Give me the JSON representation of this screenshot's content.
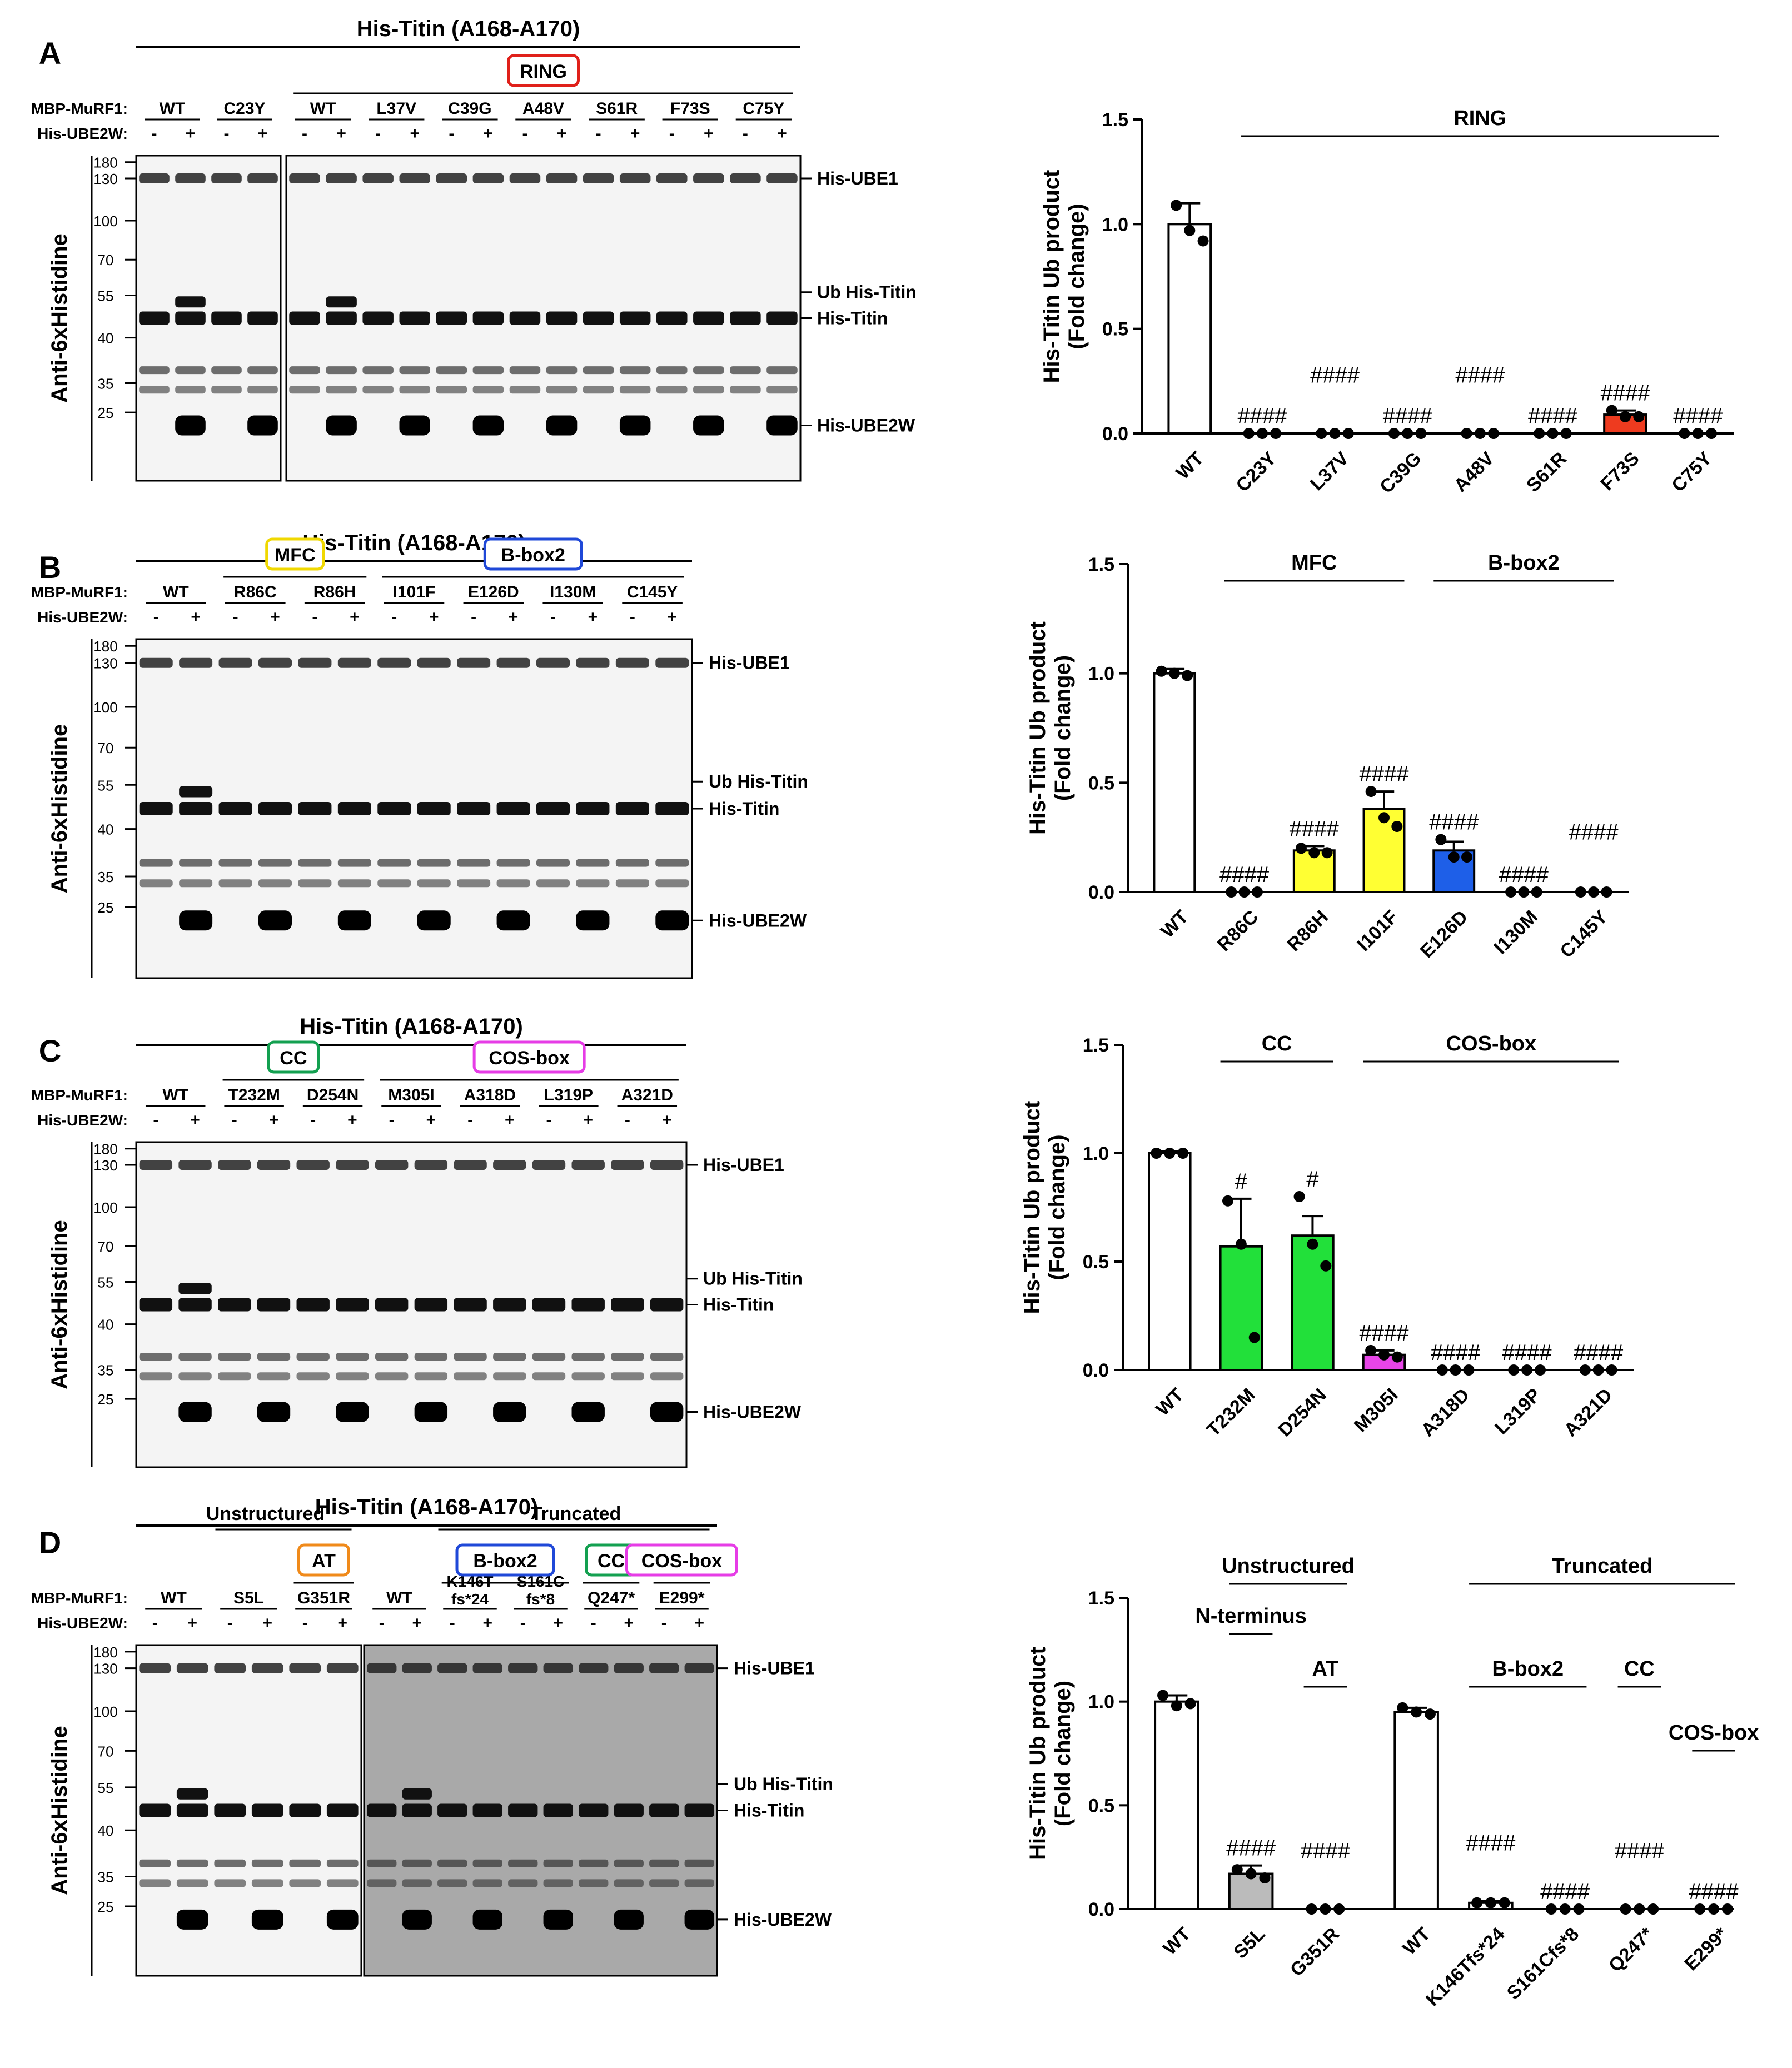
{
  "panels": [
    {
      "letter": "A",
      "blot": {
        "title": "His-Titin (A168-A170)",
        "domains": [
          {
            "label": "RING",
            "color": "#e0201a"
          }
        ],
        "row_label_mbp": "MBP-MuRF1:",
        "row_label_ube2w": "His-UBE2W:",
        "lanes_left": [
          "WT",
          "C23Y"
        ],
        "lanes_right": [
          "WT",
          "L37V",
          "C39G",
          "A48V",
          "S61R",
          "F73S",
          "C75Y"
        ],
        "ube2w_marks": [
          "-",
          "+"
        ],
        "mw_markers": [
          "180",
          "130",
          "100",
          "70",
          "55",
          "40",
          "35",
          "25"
        ],
        "y_axis_label": "Anti-6xHistidine",
        "band_labels": [
          "His-UBE1",
          "Ub His-Titin",
          "His-Titin",
          "His-UBE2W"
        ]
      },
      "chart_data": {
        "type": "bar",
        "ylabel": "His-Titin Ub product\n(Fold change)",
        "ylim": [
          0,
          1.5
        ],
        "yticks": [
          "0.0",
          "0.5",
          "1.0",
          "1.5"
        ],
        "categories": [
          "WT",
          "C23Y",
          "L37V",
          "C39G",
          "A48V",
          "S61R",
          "F73S",
          "C75Y"
        ],
        "values": [
          1.0,
          0.0,
          0.0,
          0.0,
          0.0,
          0.0,
          0.09,
          0.0
        ],
        "errors": [
          0.1,
          0,
          0,
          0,
          0,
          0,
          0.02,
          0
        ],
        "colors": [
          "#ffffff",
          "#ffffff",
          "#ffffff",
          "#ffffff",
          "#ffffff",
          "#ffffff",
          "#ee3b1f",
          "#ffffff"
        ],
        "points": [
          [
            1.09,
            0.97,
            0.92
          ],
          [
            0,
            0,
            0
          ],
          [
            0,
            0,
            0
          ],
          [
            0,
            0,
            0
          ],
          [
            0,
            0,
            0
          ],
          [
            0,
            0,
            0
          ],
          [
            0.11,
            0.08,
            0.08
          ],
          [
            0,
            0,
            0
          ]
        ],
        "significance": [
          "",
          "####",
          "####",
          "####",
          "####",
          "####",
          "####",
          "####"
        ],
        "brackets": [
          {
            "label": "RING",
            "from": 1,
            "to": 7
          }
        ]
      }
    },
    {
      "letter": "B",
      "blot": {
        "title": "His-Titin (A168-A170)",
        "domains": [
          {
            "label": "MFC",
            "color": "#f0d800"
          },
          {
            "label": "B-box2",
            "color": "#1f48d8"
          }
        ],
        "row_label_mbp": "MBP-MuRF1:",
        "row_label_ube2w": "His-UBE2W:",
        "lanes": [
          "WT",
          "R86C",
          "R86H",
          "I101F",
          "E126D",
          "I130M",
          "C145Y"
        ],
        "ube2w_marks": [
          "-",
          "+"
        ],
        "mw_markers": [
          "180",
          "130",
          "100",
          "70",
          "55",
          "40",
          "35",
          "25"
        ],
        "y_axis_label": "Anti-6xHistidine",
        "band_labels": [
          "His-UBE1",
          "Ub His-Titin",
          "His-Titin",
          "His-UBE2W"
        ]
      },
      "chart_data": {
        "type": "bar",
        "ylabel": "His-Titin Ub product\n(Fold change)",
        "ylim": [
          0,
          1.5
        ],
        "yticks": [
          "0.0",
          "0.5",
          "1.0",
          "1.5"
        ],
        "categories": [
          "WT",
          "R86C",
          "R86H",
          "I101F",
          "E126D",
          "I130M",
          "C145Y"
        ],
        "values": [
          1.0,
          0.0,
          0.19,
          0.38,
          0.19,
          0.0,
          0.0
        ],
        "errors": [
          0.02,
          0,
          0.02,
          0.08,
          0.04,
          0,
          0
        ],
        "colors": [
          "#ffffff",
          "#ffffff",
          "#ffff33",
          "#ffff33",
          "#1e5fe8",
          "#ffffff",
          "#ffffff"
        ],
        "points": [
          [
            1.01,
            1.0,
            0.99
          ],
          [
            0,
            0,
            0
          ],
          [
            0.2,
            0.18,
            0.18
          ],
          [
            0.46,
            0.34,
            0.3
          ],
          [
            0.24,
            0.16,
            0.16
          ],
          [
            0,
            0,
            0
          ],
          [
            0,
            0,
            0
          ]
        ],
        "significance": [
          "",
          "####",
          "####",
          "####",
          "####",
          "####",
          "####"
        ],
        "brackets": [
          {
            "label": "MFC",
            "from": 1,
            "to": 3
          },
          {
            "label": "B-box2",
            "from": 4,
            "to": 6
          }
        ]
      }
    },
    {
      "letter": "C",
      "blot": {
        "title": "His-Titin (A168-A170)",
        "domains": [
          {
            "label": "CC",
            "color": "#13a050"
          },
          {
            "label": "COS-box",
            "color": "#e63ce6"
          }
        ],
        "row_label_mbp": "MBP-MuRF1:",
        "row_label_ube2w": "His-UBE2W:",
        "lanes": [
          "WT",
          "T232M",
          "D254N",
          "M305I",
          "A318D",
          "L319P",
          "A321D"
        ],
        "ube2w_marks": [
          "-",
          "+"
        ],
        "mw_markers": [
          "180",
          "130",
          "100",
          "70",
          "55",
          "40",
          "35",
          "25"
        ],
        "y_axis_label": "Anti-6xHistidine",
        "band_labels": [
          "His-UBE1",
          "Ub His-Titin",
          "His-Titin",
          "His-UBE2W"
        ]
      },
      "chart_data": {
        "type": "bar",
        "ylabel": "His-Titin Ub product\n(Fold change)",
        "ylim": [
          0,
          1.5
        ],
        "yticks": [
          "0.0",
          "0.5",
          "1.0",
          "1.5"
        ],
        "categories": [
          "WT",
          "T232M",
          "D254N",
          "M305I",
          "A318D",
          "L319P",
          "A321D"
        ],
        "values": [
          1.0,
          0.57,
          0.62,
          0.07,
          0.0,
          0.0,
          0.0
        ],
        "errors": [
          0.01,
          0.22,
          0.09,
          0.02,
          0,
          0,
          0
        ],
        "colors": [
          "#ffffff",
          "#22e03a",
          "#22e03a",
          "#e845e8",
          "#ffffff",
          "#ffffff",
          "#ffffff"
        ],
        "points": [
          [
            1.0,
            1.0,
            1.0
          ],
          [
            0.78,
            0.58,
            0.15
          ],
          [
            0.8,
            0.58,
            0.48
          ],
          [
            0.09,
            0.07,
            0.06
          ],
          [
            0,
            0,
            0
          ],
          [
            0,
            0,
            0
          ],
          [
            0,
            0,
            0
          ]
        ],
        "significance": [
          "",
          "#",
          "#",
          "####",
          "####",
          "####",
          "####"
        ],
        "brackets": [
          {
            "label": "CC",
            "from": 1,
            "to": 2
          },
          {
            "label": "COS-box",
            "from": 3,
            "to": 6
          }
        ]
      }
    },
    {
      "letter": "D",
      "blot": {
        "title": "His-Titin (A168-A170)",
        "group_labels": [
          "Unstructured",
          "Truncated"
        ],
        "domains": [
          {
            "label": "AT",
            "color": "#f08a1a"
          },
          {
            "label": "B-box2",
            "color": "#1f48d8"
          },
          {
            "label": "CC",
            "color": "#13a050"
          },
          {
            "label": "COS-box",
            "color": "#e63ce6"
          }
        ],
        "row_label_mbp": "MBP-MuRF1:",
        "row_label_ube2w": "His-UBE2W:",
        "lanes_left": [
          "WT",
          "S5L",
          "G351R"
        ],
        "lanes_right": [
          "WT",
          "K146T\nfs*24",
          "S161C\nfs*8",
          "Q247*",
          "E299*"
        ],
        "ube2w_marks": [
          "-",
          "+"
        ],
        "mw_markers": [
          "180",
          "130",
          "100",
          "70",
          "55",
          "40",
          "35",
          "25"
        ],
        "y_axis_label": "Anti-6xHistidine",
        "band_labels": [
          "His-UBE1",
          "Ub His-Titin",
          "His-Titin",
          "His-UBE2W"
        ]
      },
      "chart_data": {
        "type": "bar",
        "ylabel": "His-Titin Ub product\n(Fold change)",
        "ylim": [
          0,
          1.5
        ],
        "yticks": [
          "0.0",
          "0.5",
          "1.0",
          "1.5"
        ],
        "categories": [
          "WT",
          "S5L",
          "G351R",
          "WT",
          "K146Tfs*24",
          "S161Cfs*8",
          "Q247*",
          "E299*"
        ],
        "values": [
          1.0,
          0.17,
          0.0,
          0.95,
          0.03,
          0.0,
          0.0,
          0.0
        ],
        "errors": [
          0.03,
          0.04,
          0,
          0.02,
          0.01,
          0,
          0,
          0
        ],
        "colors": [
          "#ffffff",
          "#bbbbbb",
          "#ffffff",
          "#ffffff",
          "#ffffff",
          "#ffffff",
          "#ffffff",
          "#ffffff"
        ],
        "points": [
          [
            1.03,
            0.98,
            0.99
          ],
          [
            0.19,
            0.17,
            0.15
          ],
          [
            0,
            0,
            0
          ],
          [
            0.97,
            0.95,
            0.94
          ],
          [
            0.03,
            0.03,
            0.03
          ],
          [
            0,
            0,
            0
          ],
          [
            0,
            0,
            0
          ],
          [
            0,
            0,
            0
          ]
        ],
        "significance": [
          "",
          "####",
          "####",
          "",
          "####",
          "####",
          "####",
          "####"
        ],
        "brackets": [
          {
            "label": "Unstructured",
            "from": 1,
            "to": 2,
            "level": 2
          },
          {
            "label": "Truncated",
            "from": 4,
            "to": 7,
            "level": 2
          },
          {
            "label": "N-terminus",
            "from": 1,
            "to": 1,
            "level": 1
          },
          {
            "label": "AT",
            "from": 2,
            "to": 2,
            "level": 0
          },
          {
            "label": "B-box2",
            "from": 4,
            "to": 5,
            "level": 0
          },
          {
            "label": "CC",
            "from": 6,
            "to": 6,
            "level": 0
          },
          {
            "label": "COS-box",
            "from": 7,
            "to": 7,
            "level": -1
          }
        ]
      }
    }
  ]
}
